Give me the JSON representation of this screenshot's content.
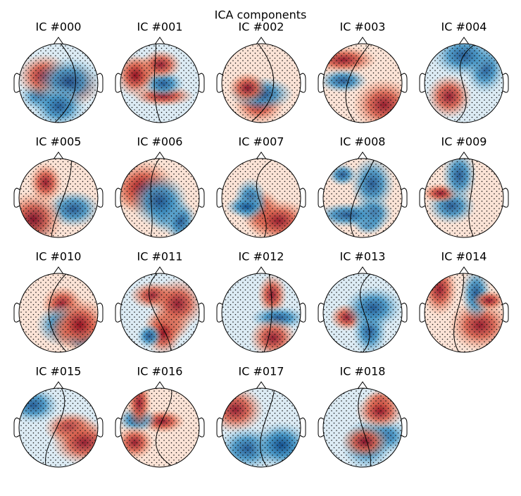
{
  "title": "ICA components",
  "components": [
    "IC #000",
    "IC #001",
    "IC #002",
    "IC #003",
    "IC #004",
    "IC #005",
    "IC #006",
    "IC #007",
    "IC #008",
    "IC #009",
    "IC #010",
    "IC #011",
    "IC #012",
    "IC #013",
    "IC #014",
    "IC #015",
    "IC #016",
    "IC #017",
    "IC #018"
  ]
}
